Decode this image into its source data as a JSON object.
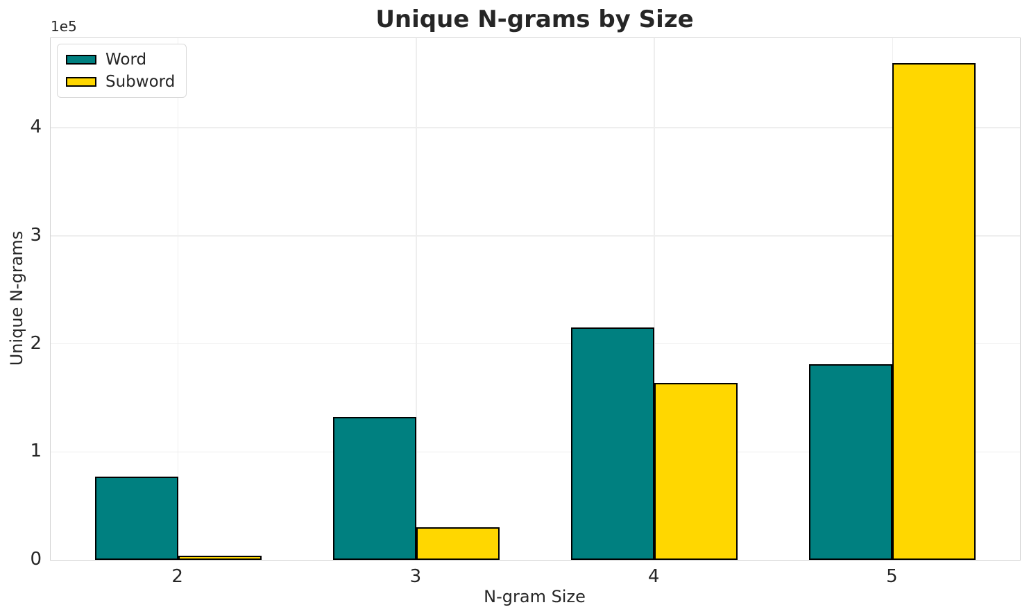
{
  "title": "Unique N-grams by Size",
  "chart_data": {
    "type": "bar",
    "title": "Unique N-grams by Size",
    "xlabel": "N-gram Size",
    "ylabel": "Unique N-grams",
    "offset_text": "1e5",
    "categories": [
      "2",
      "3",
      "4",
      "5"
    ],
    "series": [
      {
        "name": "Word",
        "color": "#008080",
        "values": [
          77000,
          132000,
          215000,
          181000
        ]
      },
      {
        "name": "Subword",
        "color": "#FFD700",
        "values": [
          4000,
          30000,
          164000,
          460000
        ]
      }
    ],
    "ylim": [
      0,
      483000
    ],
    "yticks": [
      0,
      100000,
      200000,
      300000,
      400000
    ],
    "ytick_labels": [
      "0",
      "1",
      "2",
      "3",
      "4"
    ],
    "xtick_labels": [
      "2",
      "3",
      "4",
      "5"
    ],
    "grid": true,
    "legend_position": "upper left",
    "bar_edge_color": "#000000",
    "bar_width_fraction": 0.35
  },
  "style": {
    "background": "#ffffff",
    "grid_color": "#eeeeee",
    "spine_color": "#d3d3d3",
    "text_color": "#262626",
    "title_color": "#262626"
  }
}
